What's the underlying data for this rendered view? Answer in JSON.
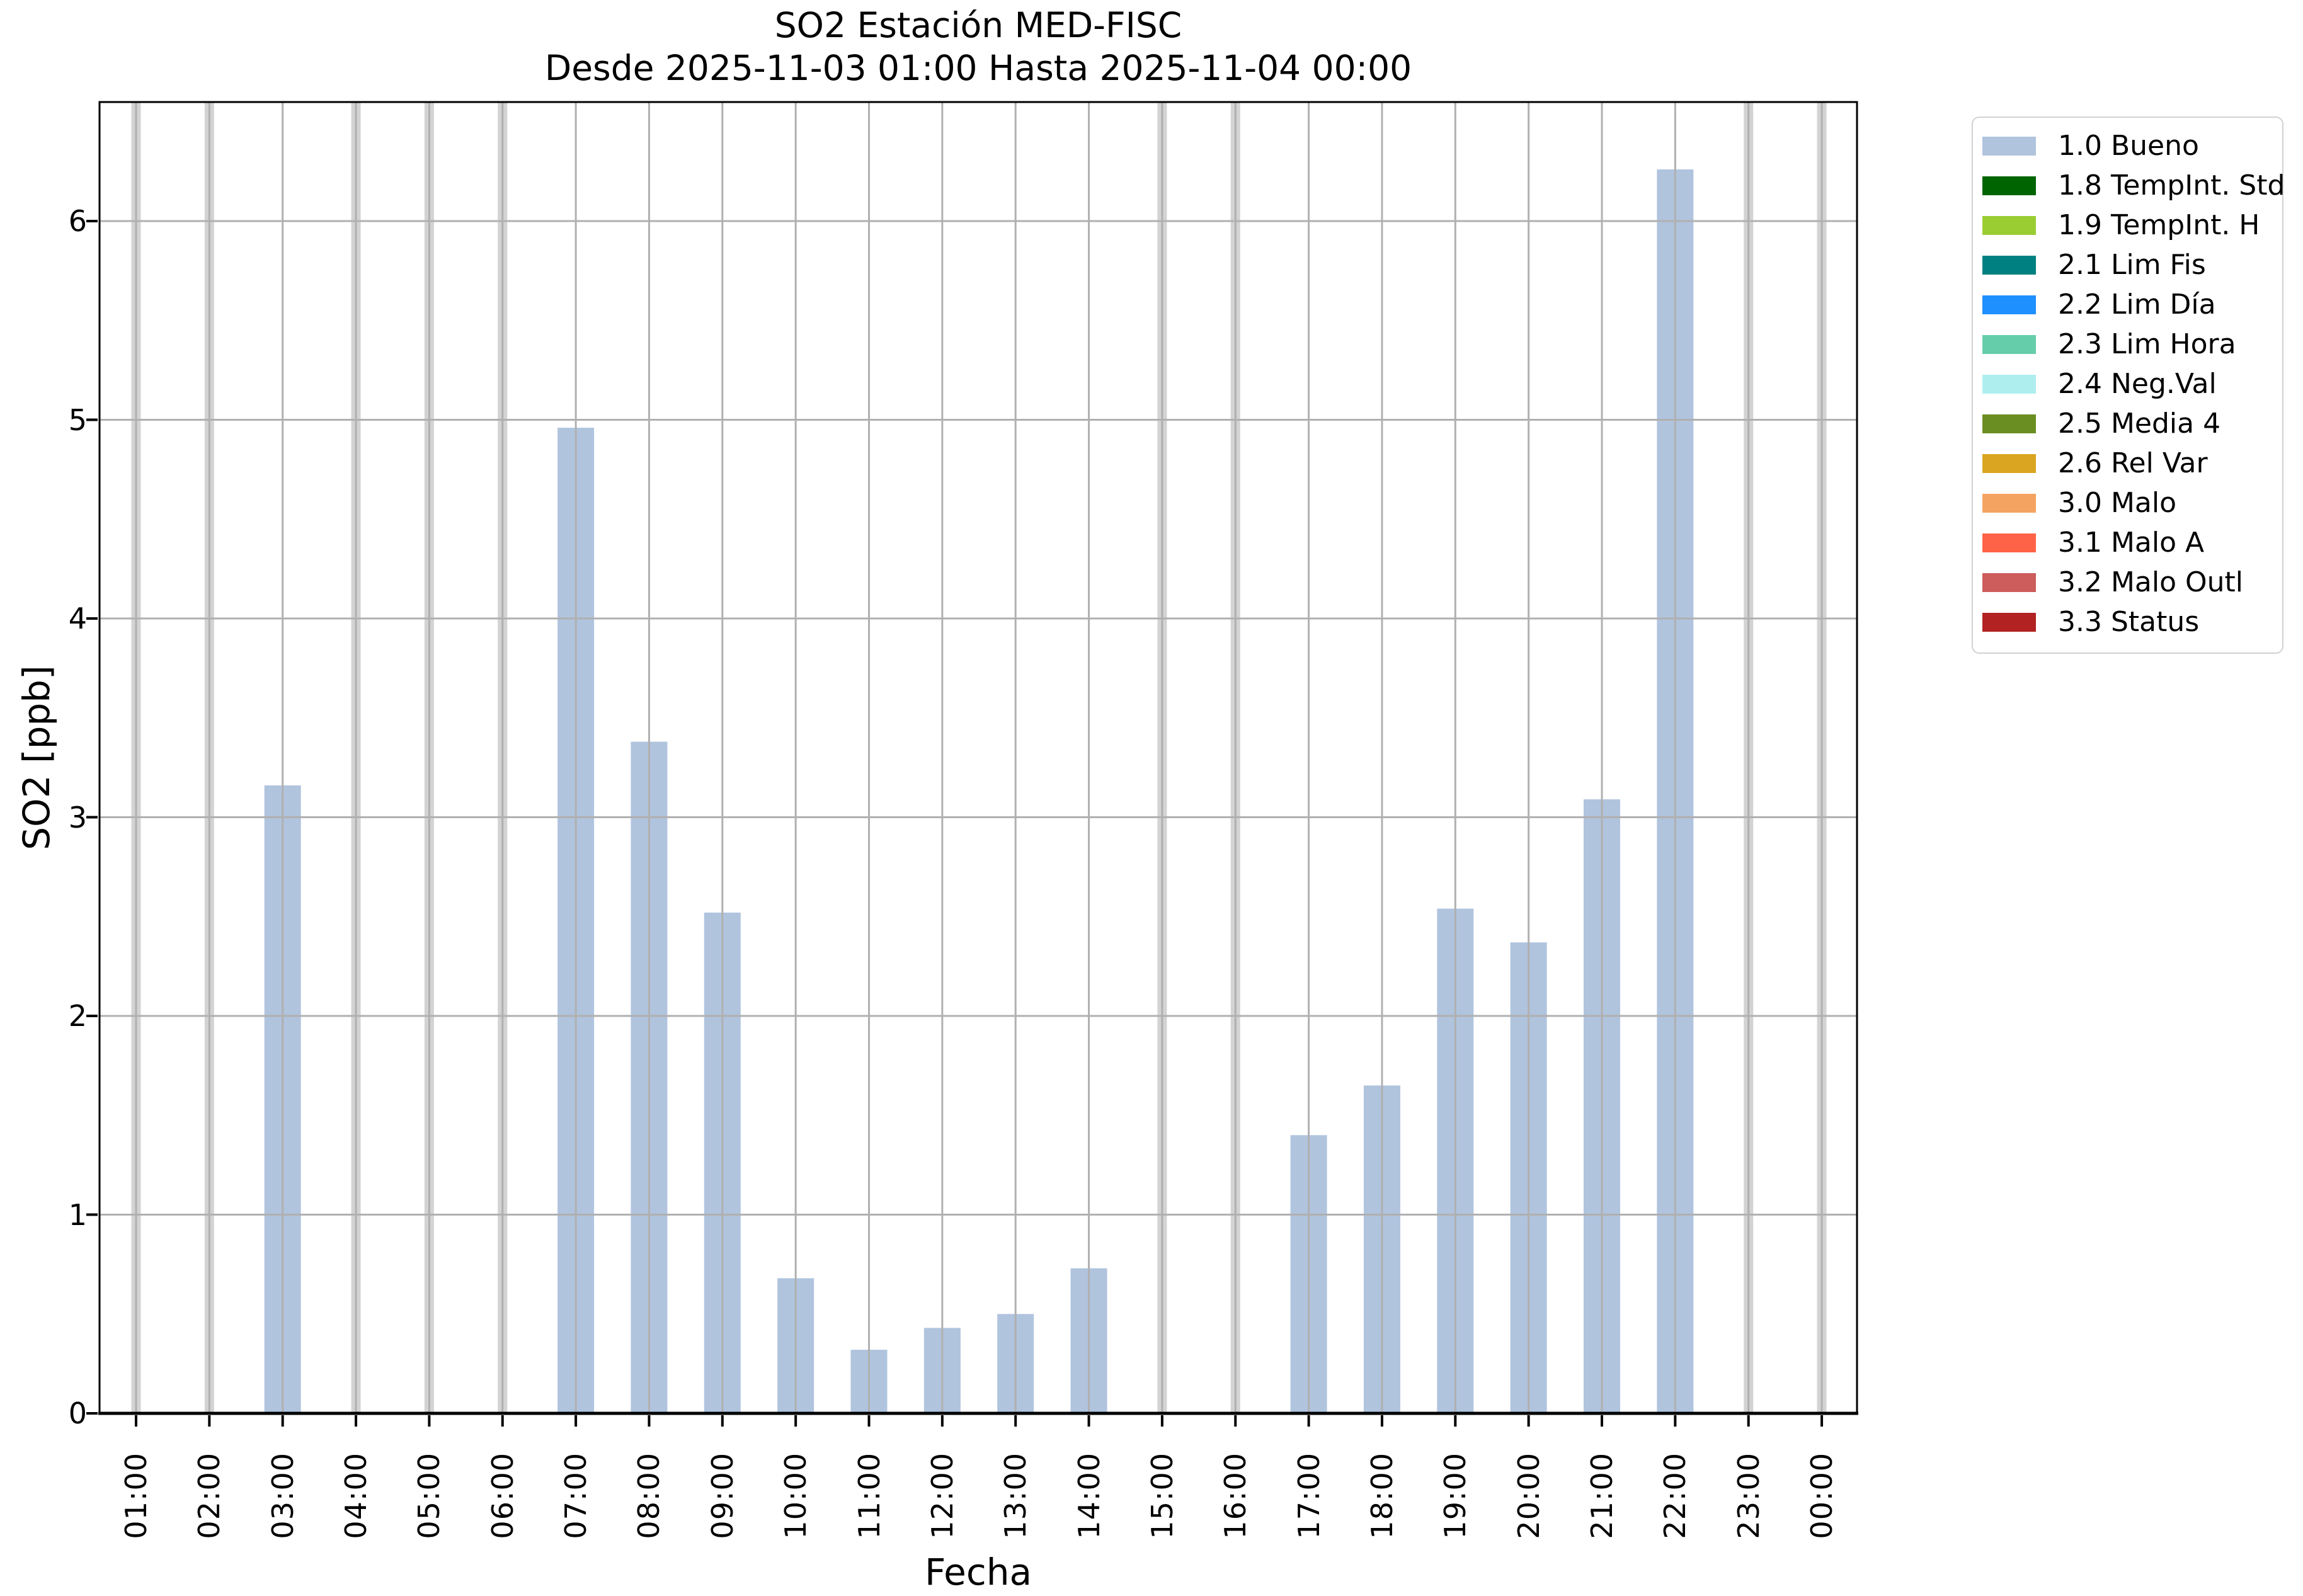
{
  "figure": {
    "title_line1": "SO2 Estación MED-FISC",
    "title_line2": "Desde 2025-11-03 01:00 Hasta 2025-11-04 00:00"
  },
  "chart_data": {
    "type": "bar",
    "title": "SO2 Estación MED-FISC\nDesde 2025-11-03 01:00 Hasta 2025-11-04 00:00",
    "xlabel": "Fecha",
    "ylabel": "SO2 [ppb]",
    "categories": [
      "01:00",
      "02:00",
      "03:00",
      "04:00",
      "05:00",
      "06:00",
      "07:00",
      "08:00",
      "09:00",
      "10:00",
      "11:00",
      "12:00",
      "13:00",
      "14:00",
      "15:00",
      "16:00",
      "17:00",
      "18:00",
      "19:00",
      "20:00",
      "21:00",
      "22:00",
      "23:00",
      "00:00"
    ],
    "series": [
      {
        "name": "1.0 Bueno",
        "values": [
          null,
          null,
          3.16,
          null,
          null,
          null,
          4.96,
          3.38,
          2.52,
          0.68,
          0.32,
          0.43,
          0.5,
          0.73,
          null,
          null,
          1.4,
          1.65,
          2.54,
          2.37,
          3.09,
          6.26,
          null,
          null
        ]
      }
    ],
    "missing_hours": [
      "01:00",
      "02:00",
      "04:00",
      "05:00",
      "06:00",
      "15:00",
      "16:00",
      "23:00",
      "00:00"
    ],
    "yticks": [
      0,
      1,
      2,
      3,
      4,
      5,
      6
    ],
    "ylim": [
      0,
      6.6
    ],
    "grid": true,
    "legend_position": "outside-upper-right",
    "legend_items": [
      {
        "label": "1.0 Bueno",
        "color": "#b0c4de"
      },
      {
        "label": "1.8 TempInt. Std",
        "color": "#006400"
      },
      {
        "label": "1.9 TempInt. H",
        "color": "#9acd32"
      },
      {
        "label": "2.1 Lim Fis",
        "color": "#008080"
      },
      {
        "label": "2.2 Lim Día",
        "color": "#1e90ff"
      },
      {
        "label": "2.3 Lim Hora",
        "color": "#66cdaa"
      },
      {
        "label": "2.4 Neg.Val",
        "color": "#afeeee"
      },
      {
        "label": "2.5 Media 4",
        "color": "#6b8e23"
      },
      {
        "label": "2.6 Rel Var",
        "color": "#daa520"
      },
      {
        "label": "3.0 Malo",
        "color": "#f4a460"
      },
      {
        "label": "3.1 Malo A",
        "color": "#ff6347"
      },
      {
        "label": "3.2 Malo Outl",
        "color": "#cd5c5c"
      },
      {
        "label": "3.3 Status",
        "color": "#b22222"
      }
    ]
  },
  "colors": {
    "bar": "#b0c4de",
    "missing_band": "#d3d3d3",
    "grid": "#b0b0b0",
    "spine": "#000000",
    "legend_border": "#d2d2d2",
    "background": "#ffffff"
  }
}
